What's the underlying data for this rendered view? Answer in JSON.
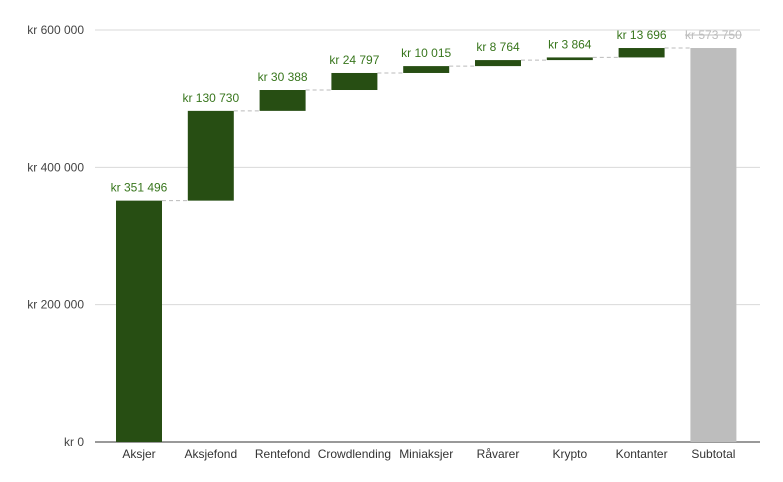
{
  "chart_data": {
    "type": "waterfall",
    "title": "",
    "xlabel": "",
    "ylabel": "",
    "ylim": [
      0,
      600000
    ],
    "y_ticks": [
      {
        "value": 0,
        "label": "kr  0"
      },
      {
        "value": 200000,
        "label": "kr  200 000"
      },
      {
        "value": 400000,
        "label": "kr  400 000"
      },
      {
        "value": 600000,
        "label": "kr  600 000"
      }
    ],
    "grid": true,
    "legend": "none",
    "categories": [
      "Aksjer",
      "Aksjefond",
      "Rentefond",
      "Crowdlending",
      "Miniaksjer",
      "Råvarer",
      "Krypto",
      "Kontanter",
      "Subtotal"
    ],
    "values": [
      351496,
      130730,
      30388,
      24797,
      10015,
      8764,
      3864,
      13696,
      573750
    ],
    "is_total": [
      false,
      false,
      false,
      false,
      false,
      false,
      false,
      false,
      true
    ],
    "data_labels": [
      "kr  351 496",
      "kr  130 730",
      "kr  30 388",
      "kr  24 797",
      "kr  10 015",
      "kr  8 764",
      "kr  3 864",
      "kr  13 696",
      "kr  573 750"
    ],
    "colors": {
      "increase": "#274e13",
      "total": "#bdbdbd",
      "label_increase": "#38761d",
      "label_total": "#bdbdbd",
      "grid": "#d9d9d9",
      "connector": "#bbbbbb",
      "axis": "#333333"
    }
  }
}
